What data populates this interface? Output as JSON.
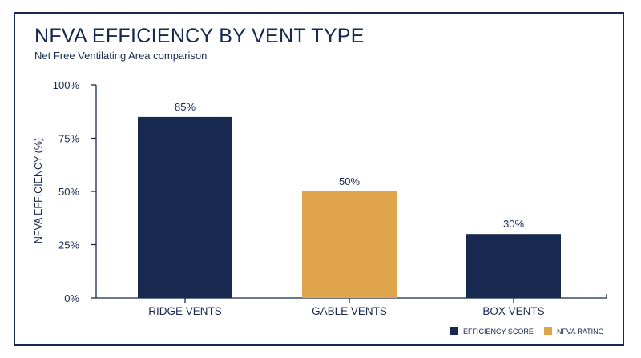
{
  "title": "NFVA EFFICIENCY BY VENT TYPE",
  "subtitle": "Net Free Ventilating Area comparison",
  "colors": {
    "navy": "#17294f",
    "gold": "#e0a44d"
  },
  "chart_data": {
    "type": "bar",
    "title": "NFVA EFFICIENCY BY VENT TYPE",
    "subtitle": "Net Free Ventilating Area comparison",
    "ylabel": "NFVA EFFICIENCY (%)",
    "xlabel": "",
    "ylim": [
      0,
      100
    ],
    "yticks": [
      0,
      25,
      50,
      75,
      100
    ],
    "ytick_labels": [
      "0%",
      "25%",
      "50%",
      "75%",
      "100%"
    ],
    "grid": false,
    "categories": [
      "RIDGE VENTS",
      "GABLE VENTS",
      "BOX VENTS"
    ],
    "values": [
      85,
      50,
      30
    ],
    "data_labels": [
      "85%",
      "50%",
      "30%"
    ],
    "bar_series": [
      "EFFICIENCY SCORE",
      "NFVA RATING",
      "EFFICIENCY SCORE"
    ],
    "legend": {
      "position": "bottom-right",
      "entries": [
        {
          "label": "EFFICIENCY SCORE",
          "color": "#17294f"
        },
        {
          "label": "NFVA RATING",
          "color": "#e0a44d"
        }
      ]
    }
  }
}
